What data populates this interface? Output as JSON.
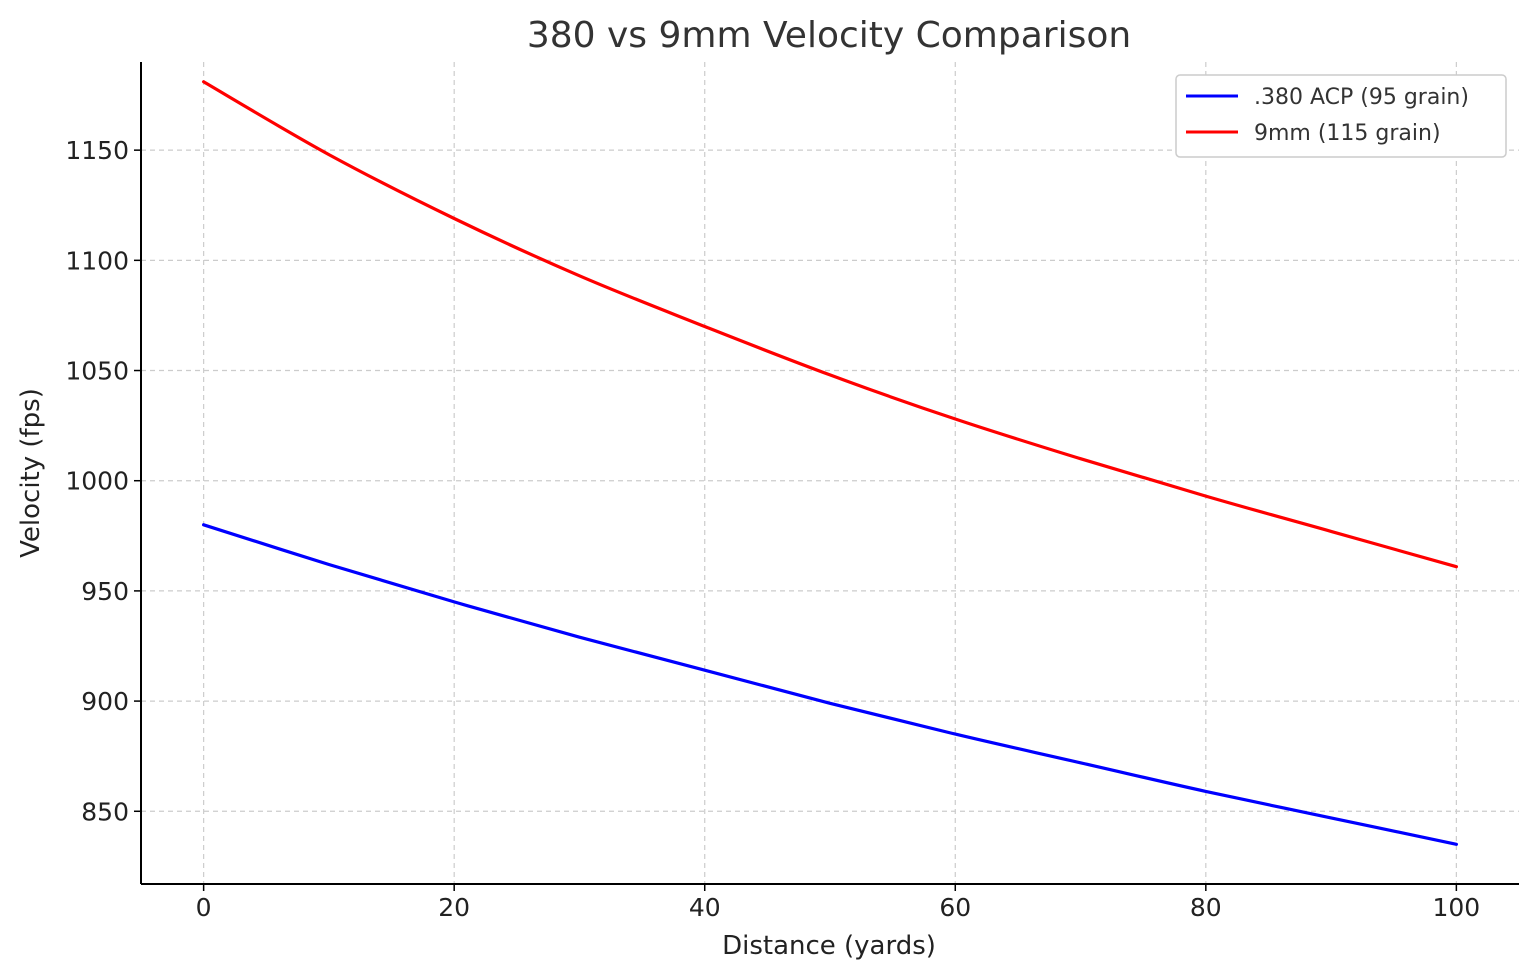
{
  "chart_data": {
    "type": "line",
    "title": "380 vs 9mm Velocity Comparison",
    "xlabel": "Distance (yards)",
    "ylabel": "Velocity (fps)",
    "xlim": [
      -5,
      105
    ],
    "ylim": [
      817,
      1190
    ],
    "xticks": [
      0,
      20,
      40,
      60,
      80,
      100
    ],
    "yticks": [
      850,
      900,
      950,
      1000,
      1050,
      1100,
      1150
    ],
    "grid": true,
    "legend_position": "top-right",
    "x": [
      0,
      10,
      20,
      30,
      40,
      50,
      60,
      70,
      80,
      90,
      100
    ],
    "series": [
      {
        "name": ".380 ACP (95 grain)",
        "color": "#0000ff",
        "values": [
          980,
          962,
          945,
          929,
          914,
          899,
          885,
          872,
          859,
          847,
          835
        ]
      },
      {
        "name": "9mm (115 grain)",
        "color": "#ff0000",
        "values": [
          1181,
          1148,
          1119,
          1093,
          1070,
          1048,
          1028,
          1010,
          993,
          977,
          961
        ]
      }
    ]
  }
}
